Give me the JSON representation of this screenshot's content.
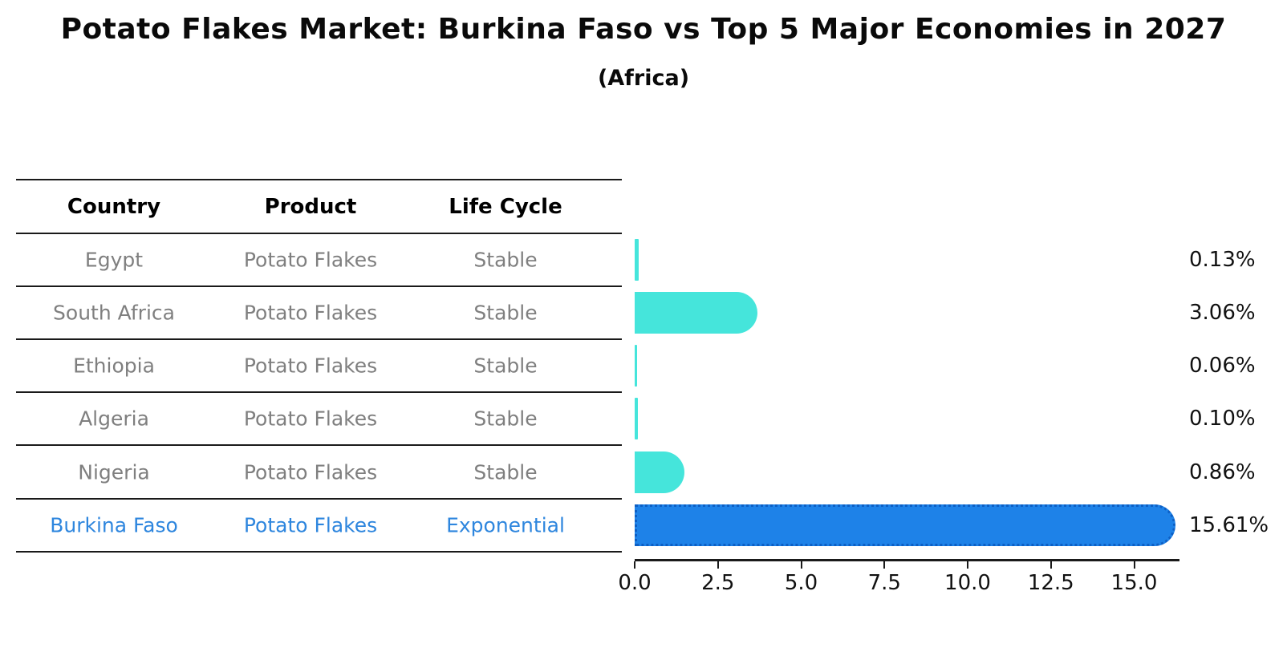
{
  "title": "Potato Flakes Market: Burkina Faso vs Top 5 Major Economies in 2027",
  "subtitle": "(Africa)",
  "table": {
    "headers": [
      "Country",
      "Product",
      "Life Cycle"
    ],
    "rows": [
      {
        "country": "Egypt",
        "product": "Potato Flakes",
        "life_cycle": "Stable",
        "highlight": false
      },
      {
        "country": "South Africa",
        "product": "Potato Flakes",
        "life_cycle": "Stable",
        "highlight": false
      },
      {
        "country": "Ethiopia",
        "product": "Potato Flakes",
        "life_cycle": "Stable",
        "highlight": false
      },
      {
        "country": "Algeria",
        "product": "Potato Flakes",
        "life_cycle": "Stable",
        "highlight": false
      },
      {
        "country": "Nigeria",
        "product": "Potato Flakes",
        "life_cycle": "Stable",
        "highlight": false
      },
      {
        "country": "Burkina Faso",
        "product": "Potato Flakes",
        "life_cycle": "Exponential",
        "highlight": true
      }
    ]
  },
  "chart_data": {
    "type": "bar",
    "orientation": "horizontal",
    "title": "Potato Flakes Market: Burkina Faso vs Top 5 Major Economies in 2027",
    "subtitle": "(Africa)",
    "categories": [
      "Egypt",
      "South Africa",
      "Ethiopia",
      "Algeria",
      "Nigeria",
      "Burkina Faso"
    ],
    "values": [
      0.13,
      3.06,
      0.06,
      0.1,
      0.86,
      15.61
    ],
    "value_labels": [
      "0.13%",
      "3.06%",
      "0.06%",
      "0.10%",
      "0.86%",
      "15.61%"
    ],
    "highlight_category": "Burkina Faso",
    "x_ticks": [
      {
        "value": 0,
        "label": "0.0"
      },
      {
        "value": 2.5,
        "label": "2.5"
      },
      {
        "value": 5,
        "label": "5.0"
      },
      {
        "value": 7.5,
        "label": "7.5"
      },
      {
        "value": 10,
        "label": "10.0"
      },
      {
        "value": 12.5,
        "label": "12.5"
      },
      {
        "value": 15,
        "label": "15.0"
      }
    ],
    "xlim": [
      0,
      16.4
    ],
    "grid": false,
    "legend": false,
    "colors": {
      "bar_default": "#45E5DB",
      "bar_highlight": "#1E82E8",
      "bar_highlight_border": "#0d5fc4",
      "highlight_text": "#2E86DE",
      "row_text": "#7f7f7f",
      "header_text": "#000000",
      "axis": "#1a1a1a"
    }
  }
}
